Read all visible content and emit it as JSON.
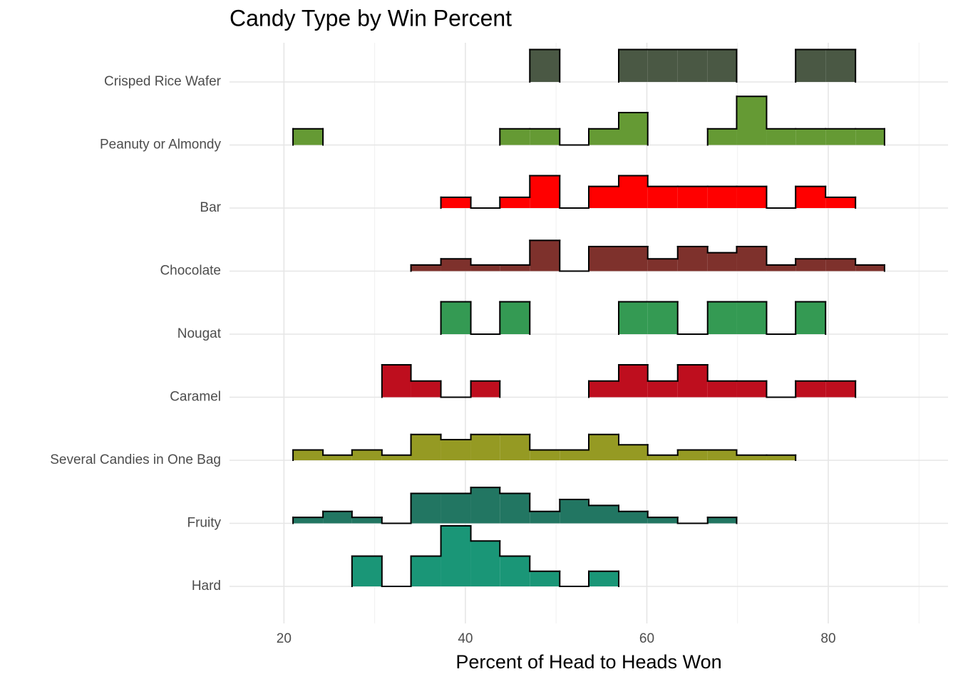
{
  "chart_data": {
    "type": "ridgeline-histogram",
    "title": "Candy Type by Win Percent",
    "x_label": "Percent of Head to Heads Won",
    "xlim": [
      14.0,
      93.2
    ],
    "xticks": [
      20,
      40,
      60,
      80
    ],
    "xminor": [
      30,
      50,
      70,
      90
    ],
    "grid": true,
    "bins": [
      21.0,
      24.3,
      27.5,
      30.8,
      34.0,
      37.3,
      40.6,
      43.8,
      47.1,
      50.4,
      53.6,
      56.9,
      60.1,
      63.4,
      66.7,
      69.9,
      73.2,
      76.4,
      79.7,
      83.0,
      86.2
    ],
    "series": [
      {
        "name": "Hard",
        "color": "#1a9677",
        "values": [
          0,
          0,
          2,
          0,
          2,
          4,
          3,
          2,
          1,
          0,
          1,
          0,
          0,
          0,
          0,
          0,
          0,
          0,
          0,
          0
        ]
      },
      {
        "name": "Fruity",
        "color": "#227662",
        "values": [
          1,
          2,
          1,
          0,
          5,
          5,
          6,
          5,
          2,
          4,
          3,
          2,
          1,
          0,
          1,
          0,
          0,
          0,
          0,
          0
        ]
      },
      {
        "name": "Several Candies in One Bag",
        "color": "#959a23",
        "values": [
          2,
          1,
          2,
          1,
          5,
          4,
          5,
          5,
          2,
          2,
          5,
          3,
          1,
          2,
          2,
          1,
          1,
          0,
          0,
          0
        ]
      },
      {
        "name": "Caramel",
        "color": "#be0e1e",
        "values": [
          0,
          0,
          0,
          2,
          1,
          0,
          1,
          0,
          0,
          0,
          1,
          2,
          1,
          2,
          1,
          1,
          0,
          1,
          1,
          0
        ]
      },
      {
        "name": "Nougat",
        "color": "#349a53",
        "values": [
          0,
          0,
          0,
          0,
          0,
          1,
          0,
          1,
          0,
          0,
          0,
          1,
          1,
          0,
          1,
          1,
          0,
          1,
          0,
          0
        ]
      },
      {
        "name": "Chocolate",
        "color": "#7e312c",
        "values": [
          0,
          0,
          0,
          0,
          1,
          2,
          1,
          1,
          5,
          0,
          4,
          4,
          2,
          4,
          3,
          4,
          1,
          2,
          2,
          1
        ]
      },
      {
        "name": "Bar",
        "color": "#ff0000",
        "values": [
          0,
          0,
          0,
          0,
          0,
          1,
          0,
          1,
          3,
          0,
          2,
          3,
          2,
          2,
          2,
          2,
          0,
          2,
          1,
          0
        ]
      },
      {
        "name": "Peanuty or Almondy",
        "color": "#659a34",
        "values": [
          1,
          0,
          0,
          0,
          0,
          0,
          0,
          1,
          1,
          0,
          1,
          2,
          0,
          0,
          1,
          3,
          1,
          1,
          1,
          1
        ]
      },
      {
        "name": "Crisped Rice Wafer",
        "color": "#4a5844",
        "values": [
          0,
          0,
          0,
          0,
          0,
          0,
          0,
          0,
          1,
          0,
          0,
          1,
          1,
          1,
          1,
          0,
          0,
          1,
          1,
          0
        ]
      }
    ]
  }
}
